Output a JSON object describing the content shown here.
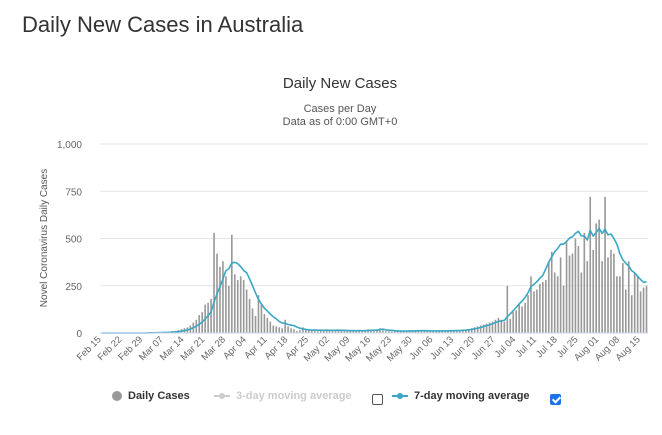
{
  "page": {
    "title": "Daily New Cases in Australia"
  },
  "legend": {
    "daily": "Daily Cases",
    "avg3": "3-day moving average",
    "avg7": "7-day moving average",
    "avg3_checked": false,
    "avg7_checked": true
  },
  "colors": {
    "bars": "#999999",
    "line7": "#3ba7c4",
    "disabled": "#cccccc",
    "checkbox": "#1a73e8"
  },
  "chart_data": {
    "type": "bar",
    "title": "Daily New Cases",
    "subtitle": "Cases per Day",
    "subtitle2": "Data as of 0:00 GMT+0",
    "ylabel": "Novel Coronavirus Daily Cases",
    "xlabel": "",
    "ylim": [
      0,
      1000
    ],
    "yticks": [
      0,
      250,
      500,
      750,
      1000
    ],
    "grid": true,
    "legend_position": "bottom",
    "start_date": "2020-02-15",
    "xtick_labels": [
      "Feb 15",
      "Feb 22",
      "Feb 29",
      "Mar 07",
      "Mar 14",
      "Mar 21",
      "Mar 28",
      "Apr 04",
      "Apr 11",
      "Apr 18",
      "Apr 25",
      "May 02",
      "May 09",
      "May 16",
      "May 23",
      "May 30",
      "Jun 06",
      "Jun 13",
      "Jun 20",
      "Jun 27",
      "Jul 04",
      "Jul 11",
      "Jul 18",
      "Jul 25",
      "Aug 01",
      "Aug 08",
      "Aug 15"
    ],
    "series": [
      {
        "name": "Daily Cases",
        "type": "bar",
        "values": [
          0,
          0,
          0,
          0,
          0,
          0,
          0,
          0,
          0,
          0,
          0,
          0,
          0,
          0,
          0,
          1,
          1,
          2,
          2,
          3,
          3,
          4,
          5,
          7,
          10,
          12,
          15,
          20,
          25,
          30,
          40,
          55,
          70,
          95,
          110,
          150,
          160,
          180,
          530,
          420,
          350,
          380,
          300,
          250,
          520,
          310,
          280,
          300,
          280,
          230,
          180,
          130,
          90,
          200,
          150,
          100,
          80,
          60,
          40,
          35,
          30,
          25,
          70,
          35,
          25,
          20,
          10,
          15,
          30,
          20,
          15,
          12,
          15,
          10,
          12,
          15,
          20,
          15,
          12,
          10,
          12,
          15,
          12,
          10,
          15,
          12,
          10,
          8,
          10,
          15,
          20,
          18,
          15,
          20,
          25,
          15,
          10,
          10,
          8,
          12,
          10,
          8,
          10,
          12,
          15,
          12,
          10,
          12,
          15,
          12,
          10,
          10,
          8,
          10,
          12,
          10,
          10,
          12,
          15,
          10,
          12,
          15,
          18,
          15,
          20,
          25,
          30,
          35,
          40,
          45,
          50,
          55,
          60,
          70,
          80,
          70,
          60,
          250,
          75,
          110,
          120,
          150,
          140,
          160,
          200,
          300,
          220,
          230,
          260,
          270,
          280,
          380,
          430,
          320,
          300,
          400,
          250,
          480,
          410,
          420,
          500,
          460,
          320,
          530,
          380,
          720,
          440,
          580,
          600,
          380,
          720,
          400,
          440,
          420,
          300,
          300,
          370,
          230,
          380,
          200,
          320,
          300,
          220,
          240,
          250
        ]
      },
      {
        "name": "7-day moving average",
        "type": "line",
        "values": [
          0,
          0,
          0,
          0,
          0,
          0,
          0,
          0,
          0,
          0,
          0,
          0,
          0,
          0,
          0,
          0,
          1,
          1,
          1,
          2,
          2,
          3,
          3,
          4,
          5,
          6,
          8,
          10,
          13,
          16,
          21,
          28,
          36,
          46,
          59,
          74,
          92,
          112,
          164,
          207,
          245,
          286,
          330,
          340,
          370,
          374,
          367,
          351,
          331,
          319,
          286,
          250,
          212,
          178,
          153,
          131,
          116,
          100,
          86,
          75,
          61,
          53,
          51,
          45,
          42,
          39,
          31,
          25,
          22,
          19,
          17,
          15,
          16,
          15,
          15,
          14,
          14,
          14,
          14,
          14,
          15,
          14,
          14,
          13,
          13,
          12,
          12,
          13,
          12,
          12,
          13,
          14,
          15,
          15,
          18,
          20,
          17,
          15,
          14,
          12,
          11,
          10,
          10,
          10,
          10,
          11,
          11,
          12,
          12,
          12,
          12,
          11,
          11,
          11,
          11,
          11,
          11,
          11,
          12,
          12,
          13,
          13,
          14,
          15,
          17,
          19,
          22,
          25,
          29,
          34,
          39,
          43,
          49,
          55,
          61,
          64,
          67,
          86,
          101,
          118,
          135,
          154,
          169,
          188,
          213,
          245,
          258,
          271,
          290,
          305,
          340,
          375,
          403,
          430,
          447,
          470,
          470,
          484,
          502,
          510,
          527,
          538,
          514,
          513,
          492,
          543,
          513,
          531,
          554,
          527,
          549,
          519,
          524,
          500,
          470,
          420,
          388,
          369,
          354,
          330,
          318,
          300,
          283,
          268,
          271
        ]
      }
    ]
  }
}
